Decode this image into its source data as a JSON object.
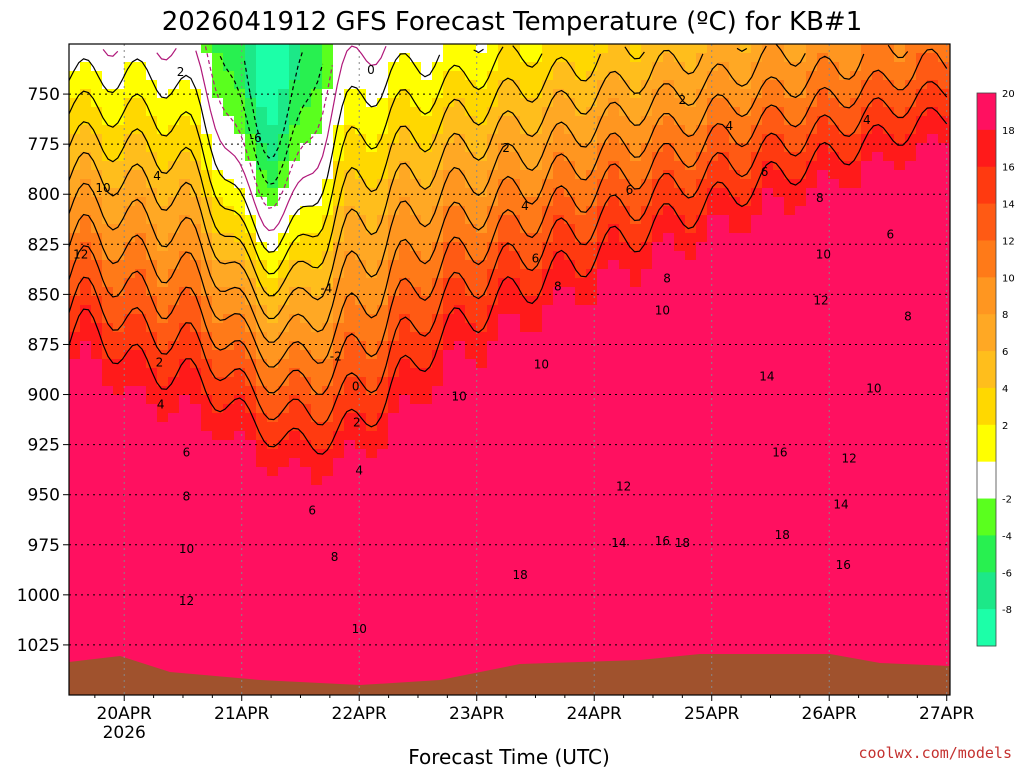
{
  "chart_data": {
    "type": "heatmap",
    "title": "2026041912 GFS Forecast Temperature (ºC) for KB#1",
    "xlabel": "Forecast Time (UTC)",
    "credit": "coolwx.com/models",
    "x_ticks": [
      {
        "label": "20APR",
        "sub": "2026",
        "day": 0
      },
      {
        "label": "21APR",
        "sub": "",
        "day": 1
      },
      {
        "label": "22APR",
        "sub": "",
        "day": 2
      },
      {
        "label": "23APR",
        "sub": "",
        "day": 3
      },
      {
        "label": "24APR",
        "sub": "",
        "day": 4
      },
      {
        "label": "25APR",
        "sub": "",
        "day": 5
      },
      {
        "label": "26APR",
        "sub": "",
        "day": 6
      },
      {
        "label": "27APR",
        "sub": "",
        "day": 7
      }
    ],
    "x_start_day": -0.47,
    "y_ticks": [
      750,
      775,
      800,
      825,
      850,
      875,
      900,
      925,
      950,
      975,
      1000,
      1025
    ],
    "y_top_hpa": 725,
    "y_bottom_hpa": 1050,
    "grid": true,
    "colorbar": {
      "ticks": [
        20,
        18,
        16,
        14,
        12,
        10,
        8,
        6,
        4,
        2,
        -2,
        -4,
        -6,
        -8
      ],
      "bands": [
        {
          "from": 20,
          "to": 22,
          "color": "#ff1060"
        },
        {
          "from": 18,
          "to": 20,
          "color": "#ff1a1a"
        },
        {
          "from": 16,
          "to": 18,
          "color": "#ff3a10"
        },
        {
          "from": 14,
          "to": 16,
          "color": "#ff5a14"
        },
        {
          "from": 12,
          "to": 14,
          "color": "#ff7a18"
        },
        {
          "from": 10,
          "to": 12,
          "color": "#ff9620"
        },
        {
          "from": 8,
          "to": 10,
          "color": "#ffa824"
        },
        {
          "from": 6,
          "to": 8,
          "color": "#ffbe1c"
        },
        {
          "from": 4,
          "to": 6,
          "color": "#ffd800"
        },
        {
          "from": 2,
          "to": 4,
          "color": "#ffff00"
        },
        {
          "from": -2,
          "to": 2,
          "color": "#ffffff"
        },
        {
          "from": -4,
          "to": -2,
          "color": "#5aff1e"
        },
        {
          "from": -6,
          "to": -4,
          "color": "#28f050"
        },
        {
          "from": -8,
          "to": -6,
          "color": "#1ce888"
        },
        {
          "from": -10,
          "to": -8,
          "color": "#1cffa8"
        }
      ]
    },
    "contour_labels": [
      {
        "text": "2",
        "day": 0.48,
        "p": 739
      },
      {
        "text": "4",
        "day": 0.28,
        "p": 791
      },
      {
        "text": "10",
        "day": -0.18,
        "p": 797
      },
      {
        "text": "12",
        "day": -0.37,
        "p": 830
      },
      {
        "text": "2",
        "day": 0.3,
        "p": 884
      },
      {
        "text": "4",
        "day": 0.31,
        "p": 905
      },
      {
        "text": "6",
        "day": 0.53,
        "p": 929
      },
      {
        "text": "8",
        "day": 0.53,
        "p": 951
      },
      {
        "text": "10",
        "day": 0.53,
        "p": 977
      },
      {
        "text": "12",
        "day": 0.53,
        "p": 1003
      },
      {
        "text": "-6",
        "day": 1.12,
        "p": 772
      },
      {
        "text": "-4",
        "day": 1.72,
        "p": 847
      },
      {
        "text": "-2",
        "day": 1.8,
        "p": 881
      },
      {
        "text": "0",
        "day": 2.1,
        "p": 738
      },
      {
        "text": "0",
        "day": 1.97,
        "p": 896
      },
      {
        "text": "2",
        "day": 1.98,
        "p": 914
      },
      {
        "text": "4",
        "day": 2.0,
        "p": 938
      },
      {
        "text": "6",
        "day": 1.6,
        "p": 958
      },
      {
        "text": "8",
        "day": 1.79,
        "p": 981
      },
      {
        "text": "10",
        "day": 2.0,
        "p": 1017
      },
      {
        "text": "2",
        "day": 3.25,
        "p": 777
      },
      {
        "text": "4",
        "day": 3.41,
        "p": 806
      },
      {
        "text": "6",
        "day": 3.5,
        "p": 832
      },
      {
        "text": "8",
        "day": 3.69,
        "p": 846
      },
      {
        "text": "10",
        "day": 3.55,
        "p": 885
      },
      {
        "text": "10",
        "day": 2.85,
        "p": 901
      },
      {
        "text": "18",
        "day": 3.37,
        "p": 990
      },
      {
        "text": "6",
        "day": 4.3,
        "p": 798
      },
      {
        "text": "8",
        "day": 4.62,
        "p": 842
      },
      {
        "text": "10",
        "day": 4.58,
        "p": 858
      },
      {
        "text": "12",
        "day": 4.25,
        "p": 946
      },
      {
        "text": "14",
        "day": 4.21,
        "p": 974
      },
      {
        "text": "16",
        "day": 4.58,
        "p": 973
      },
      {
        "text": "18",
        "day": 4.75,
        "p": 974
      },
      {
        "text": "2",
        "day": 4.75,
        "p": 753
      },
      {
        "text": "4",
        "day": 5.15,
        "p": 766
      },
      {
        "text": "6",
        "day": 5.45,
        "p": 789
      },
      {
        "text": "8",
        "day": 5.92,
        "p": 802
      },
      {
        "text": "10",
        "day": 5.95,
        "p": 830
      },
      {
        "text": "12",
        "day": 5.93,
        "p": 853
      },
      {
        "text": "14",
        "day": 5.47,
        "p": 891
      },
      {
        "text": "16",
        "day": 5.58,
        "p": 929
      },
      {
        "text": "18",
        "day": 5.6,
        "p": 970
      },
      {
        "text": "4",
        "day": 6.32,
        "p": 763
      },
      {
        "text": "6",
        "day": 6.52,
        "p": 820
      },
      {
        "text": "8",
        "day": 6.67,
        "p": 861
      },
      {
        "text": "10",
        "day": 6.38,
        "p": 897
      },
      {
        "text": "12",
        "day": 6.17,
        "p": 932
      },
      {
        "text": "14",
        "day": 6.1,
        "p": 955
      },
      {
        "text": "16",
        "day": 6.12,
        "p": 985
      }
    ]
  }
}
